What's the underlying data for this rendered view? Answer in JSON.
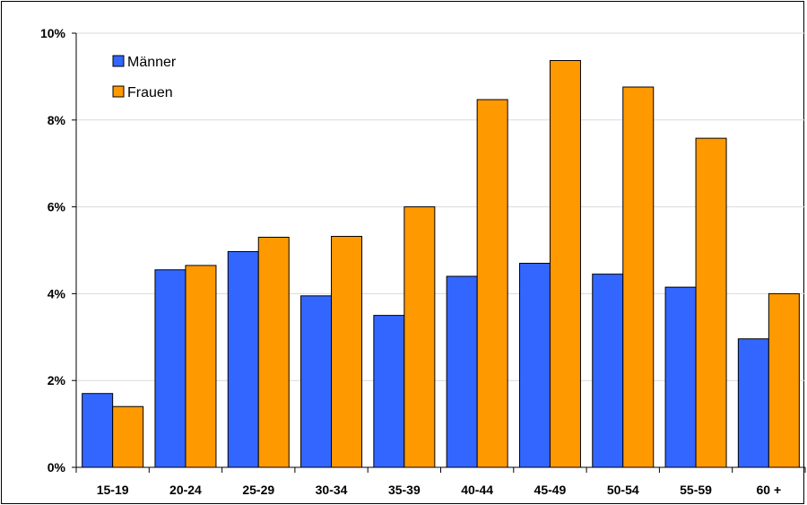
{
  "chart_data": {
    "type": "bar",
    "categories": [
      "15-19",
      "20-24",
      "25-29",
      "30-34",
      "35-39",
      "40-44",
      "45-49",
      "50-54",
      "55-59",
      "60 +"
    ],
    "series": [
      {
        "name": "Männer",
        "color": "#3366FF",
        "values": [
          1.7,
          4.55,
          4.97,
          3.95,
          3.5,
          4.4,
          4.7,
          4.45,
          4.15,
          2.96
        ]
      },
      {
        "name": "Frauen",
        "color": "#FF9900",
        "values": [
          1.4,
          4.65,
          5.3,
          5.32,
          6.0,
          8.47,
          9.37,
          8.76,
          7.58,
          4.0
        ]
      }
    ],
    "title": "",
    "xlabel": "",
    "ylabel": "",
    "ylim": [
      0,
      10
    ],
    "yticks": [
      "0%",
      "2%",
      "4%",
      "6%",
      "8%",
      "10%"
    ],
    "grid": true,
    "legend_position": "top-left"
  }
}
